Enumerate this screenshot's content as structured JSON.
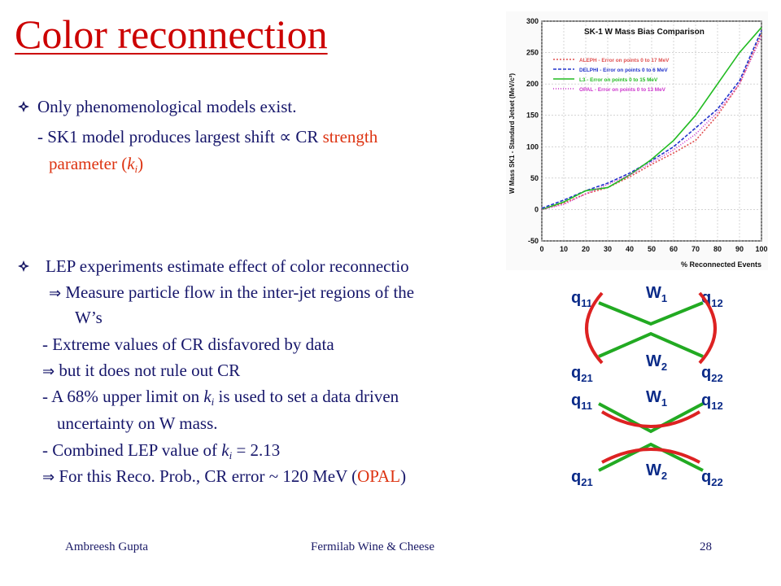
{
  "title": "Color reconnection",
  "bullet1": {
    "text": "Only phenomenological models exist.",
    "sub1": "- SK1 model produces largest shift ∝ CR ",
    "sub1_red": "strength",
    "sub2_red": "parameter (",
    "sub2_k": "k",
    "sub2_i": "i",
    "sub2_end": ")"
  },
  "bullet2": {
    "text": "LEP experiments estimate effect of color reconnectio",
    "l1": "Measure particle flow in the inter-jet regions of the",
    "l2": "W’s",
    "l3": "-  Extreme values of CR disfavored by data",
    "l4": "but it does not rule out CR",
    "l5a": "-  A 68% upper limit on ",
    "l5k": "k",
    "l5i": "i",
    "l5b": " is used to set a data driven",
    "l6": "uncertainty on W mass.",
    "l7a": "-  Combined LEP value of ",
    "l7k": "k",
    "l7i": "i",
    "l7b": " = 2.13",
    "l8a": "For this Reco. Prob., CR error ~ 120 MeV (",
    "l8red": "OPAL",
    "l8b": ")"
  },
  "symbols": {
    "implies": "⇒"
  },
  "footer": {
    "author": "Ambreesh Gupta",
    "event": "Fermilab Wine & Cheese",
    "page": "28"
  },
  "colors": {
    "title": "#cc0000",
    "text": "#16166a",
    "accent": "#dd3311",
    "green": "#22aa22",
    "red_line": "#dd2222"
  },
  "chart_data": {
    "type": "line",
    "title": "SK-1 W Mass Bias Comparison",
    "xlabel": "% Reconnected Events",
    "ylabel": "W Mass SK1 - Standard Jetset (MeV/c²)",
    "xlim": [
      0,
      100
    ],
    "ylim": [
      -50,
      300
    ],
    "xticks": [
      "0",
      "10",
      "20",
      "30",
      "40",
      "50",
      "60",
      "70",
      "80",
      "90",
      "100"
    ],
    "yticks": [
      "-50",
      "0",
      "50",
      "100",
      "150",
      "200",
      "250",
      "300"
    ],
    "legend_position": "top-left",
    "series": [
      {
        "name": "ALEPH - Error on points 0 to 17 MeV",
        "color": "#e05050",
        "dash": "2,2",
        "x": [
          0,
          10,
          20,
          30,
          40,
          50,
          60,
          70,
          80,
          90,
          100
        ],
        "y": [
          0,
          10,
          25,
          35,
          52,
          72,
          90,
          110,
          150,
          200,
          280
        ]
      },
      {
        "name": "DELPHI - Error on points 0 to 6 MeV",
        "color": "#2233cc",
        "dash": "4,2",
        "x": [
          0,
          10,
          20,
          30,
          40,
          50,
          60,
          70,
          80,
          90,
          100
        ],
        "y": [
          2,
          15,
          30,
          42,
          58,
          78,
          100,
          130,
          160,
          205,
          285
        ]
      },
      {
        "name": "L3 - Error on points 0 to 15 MeV",
        "color": "#22bb22",
        "dash": "",
        "x": [
          0,
          10,
          20,
          30,
          40,
          50,
          60,
          70,
          80,
          90,
          100
        ],
        "y": [
          0,
          12,
          30,
          35,
          55,
          80,
          110,
          150,
          200,
          250,
          290
        ]
      },
      {
        "name": "OPAL - Error on points 0 to 13 MeV",
        "color": "#cc33cc",
        "dash": "1,2",
        "x": [
          0,
          10,
          20,
          30,
          40,
          50,
          60,
          70,
          80,
          90,
          100
        ],
        "y": [
          0,
          8,
          25,
          40,
          55,
          75,
          95,
          120,
          155,
          200,
          275
        ]
      }
    ]
  },
  "diagram": {
    "top": {
      "q11": "q",
      "q11s": "11",
      "q12": "q",
      "q12s": "12",
      "q21": "q",
      "q21s": "21",
      "q22": "q",
      "q22s": "22",
      "w1": "W",
      "w1s": "1",
      "w2": "W",
      "w2s": "2"
    },
    "bottom": {
      "q11": "q",
      "q11s": "11",
      "q12": "q",
      "q12s": "12",
      "q21": "q",
      "q21s": "21",
      "q22": "q",
      "q22s": "22",
      "w1": "W",
      "w1s": "1",
      "w2": "W",
      "w2s": "2"
    }
  }
}
